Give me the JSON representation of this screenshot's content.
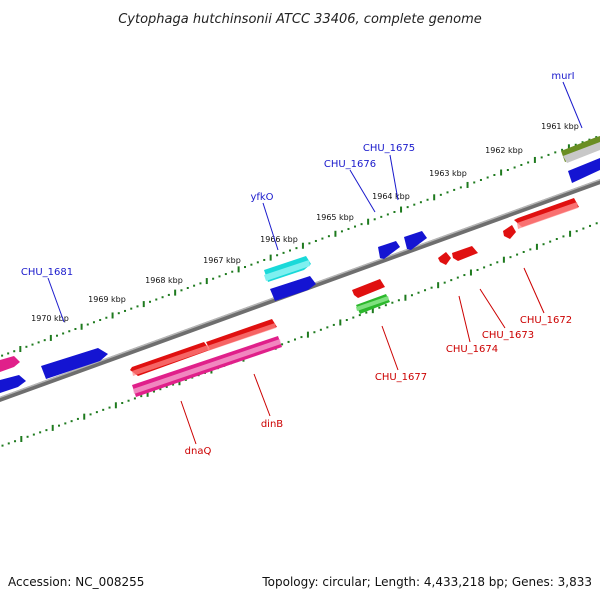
{
  "title": "Cytophaga hutchinsonii ATCC 33406, complete genome",
  "footer": {
    "accession": "Accession: NC_008255",
    "summary": "Topology: circular; Length: 4,433,218 bp; Genes: 3,833"
  },
  "colors": {
    "backbone": "#888888",
    "tick": "#1e7a1e",
    "forward_label": "#1a1acc",
    "reverse_label": "#cc0000",
    "blue_gene": "#1414d2",
    "red_gene": "#e01010",
    "magenta_gene": "#e0208a",
    "cyan_gene": "#1ad9d9",
    "green_gene": "#2cb82c",
    "olive_gene": "#6b8e23"
  },
  "ruler_labels": [
    "1961 kbp",
    "1962 kbp",
    "1963 kbp",
    "1964 kbp",
    "1965 kbp",
    "1966 kbp",
    "1967 kbp",
    "1968 kbp",
    "1969 kbp",
    "1970 kbp"
  ],
  "genes": {
    "forward": [
      "murI",
      "CHU_1675",
      "CHU_1676",
      "yfkO",
      "CHU_1681"
    ],
    "reverse": [
      "CHU_1672",
      "CHU_1673",
      "CHU_1674",
      "CHU_1677",
      "dinB",
      "dnaQ"
    ]
  }
}
